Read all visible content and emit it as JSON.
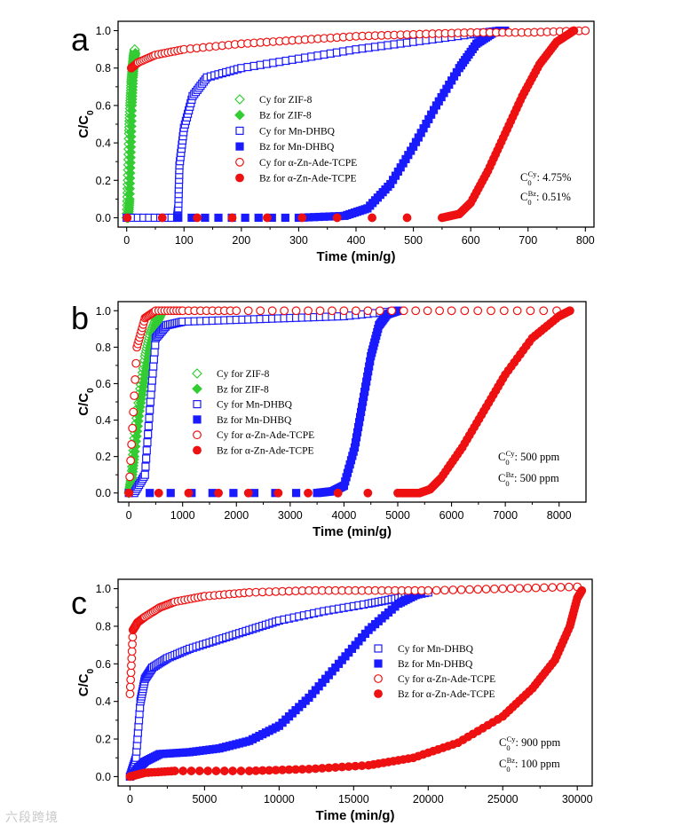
{
  "watermark": "六段跨境",
  "colors": {
    "green": "#33cc33",
    "blue": "#1a1aff",
    "red": "#ee1111",
    "axis": "#000000"
  },
  "chart_data": [
    {
      "panel": "a",
      "type": "scatter",
      "xlabel": "Time (min/g)",
      "ylabel": "C/C0",
      "xlim": [
        -15,
        815
      ],
      "ylim": [
        -0.05,
        1.05
      ],
      "xticks": [
        0,
        100,
        200,
        300,
        400,
        500,
        600,
        700,
        800
      ],
      "yticks": [
        0.0,
        0.2,
        0.4,
        0.6,
        0.8,
        1.0
      ],
      "ytick_labels": [
        "0.0",
        "0.2",
        "0.4",
        "0.6",
        "0.8",
        "1.0"
      ],
      "legend_position": "center",
      "concentrations": [
        {
          "species": "Cy",
          "value": ": 4.75%"
        },
        {
          "species": "Bz",
          "value": ": 0.51%"
        }
      ],
      "series": [
        {
          "name": "Cy for ZIF-8",
          "color": "#33cc33",
          "marker": "diamond-open",
          "points": [
            [
              0,
              0.0
            ],
            [
              2,
              0.2
            ],
            [
              4,
              0.45
            ],
            [
              6,
              0.6
            ],
            [
              8,
              0.72
            ],
            [
              10,
              0.8
            ],
            [
              12,
              0.86
            ],
            [
              14,
              0.9
            ]
          ]
        },
        {
          "name": "Bz for ZIF-8",
          "color": "#33cc33",
          "marker": "diamond-filled",
          "points": [
            [
              0,
              0.0
            ],
            [
              3,
              0.0
            ],
            [
              5,
              0.1
            ],
            [
              7,
              0.35
            ],
            [
              9,
              0.6
            ],
            [
              11,
              0.75
            ],
            [
              13,
              0.85
            ],
            [
              15,
              0.88
            ]
          ]
        },
        {
          "name": "Cy for Mn-DHBQ",
          "color": "#1a1aff",
          "marker": "square-open",
          "points": [
            [
              0,
              0.0
            ],
            [
              88,
              0.0
            ],
            [
              90,
              0.05
            ],
            [
              92,
              0.28
            ],
            [
              100,
              0.48
            ],
            [
              115,
              0.65
            ],
            [
              140,
              0.75
            ],
            [
              200,
              0.8
            ],
            [
              300,
              0.85
            ],
            [
              400,
              0.9
            ],
            [
              500,
              0.94
            ],
            [
              600,
              0.98
            ],
            [
              650,
              1.0
            ]
          ]
        },
        {
          "name": "Bz for Mn-DHBQ",
          "color": "#1a1aff",
          "marker": "square-filled",
          "points": [
            [
              90,
              0.0
            ],
            [
              300,
              0.0
            ],
            [
              380,
              0.01
            ],
            [
              420,
              0.05
            ],
            [
              460,
              0.18
            ],
            [
              500,
              0.38
            ],
            [
              540,
              0.6
            ],
            [
              580,
              0.8
            ],
            [
              610,
              0.93
            ],
            [
              640,
              0.99
            ],
            [
              660,
              1.0
            ]
          ]
        },
        {
          "name": "Cy for α-Zn-Ade-TCPE",
          "color": "#ee1111",
          "marker": "circle-open",
          "points": [
            [
              8,
              0.8
            ],
            [
              20,
              0.83
            ],
            [
              50,
              0.87
            ],
            [
              100,
              0.9
            ],
            [
              200,
              0.93
            ],
            [
              300,
              0.95
            ],
            [
              400,
              0.97
            ],
            [
              500,
              0.98
            ],
            [
              600,
              0.99
            ],
            [
              700,
              0.99
            ],
            [
              800,
              1.0
            ]
          ]
        },
        {
          "name": "Bz for α-Zn-Ade-TCPE",
          "color": "#ee1111",
          "marker": "circle-filled",
          "points": [
            [
              600,
              0.0
            ],
            [
              1,
              0.0
            ],
            [
              550,
              0.0
            ],
            [
              580,
              0.02
            ],
            [
              600,
              0.08
            ],
            [
              630,
              0.25
            ],
            [
              660,
              0.45
            ],
            [
              690,
              0.65
            ],
            [
              720,
              0.82
            ],
            [
              750,
              0.94
            ],
            [
              780,
              1.0
            ]
          ]
        }
      ]
    },
    {
      "panel": "b",
      "type": "scatter",
      "xlabel": "Time (min/g)",
      "ylabel": "C/C0",
      "xlim": [
        -200,
        8500
      ],
      "ylim": [
        -0.05,
        1.05
      ],
      "xticks": [
        0,
        1000,
        2000,
        3000,
        4000,
        5000,
        6000,
        7000,
        8000
      ],
      "yticks": [
        0.0,
        0.2,
        0.4,
        0.6,
        0.8,
        1.0
      ],
      "ytick_labels": [
        "0.0",
        "0.2",
        "0.4",
        "0.6",
        "0.8",
        "1.0"
      ],
      "legend_position": "center-left",
      "concentrations": [
        {
          "species": "Cy",
          "value": ": 500 ppm"
        },
        {
          "species": "Bz",
          "value": ": 500 ppm"
        }
      ],
      "series": [
        {
          "name": "Cy for ZIF-8",
          "color": "#33cc33",
          "marker": "diamond-open",
          "points": [
            [
              0,
              0.0
            ],
            [
              50,
              0.1
            ],
            [
              100,
              0.3
            ],
            [
              200,
              0.55
            ],
            [
              300,
              0.75
            ],
            [
              400,
              0.88
            ],
            [
              500,
              0.95
            ],
            [
              600,
              0.99
            ]
          ]
        },
        {
          "name": "Bz for ZIF-8",
          "color": "#33cc33",
          "marker": "diamond-filled",
          "points": [
            [
              0,
              0.0
            ],
            [
              50,
              0.05
            ],
            [
              100,
              0.2
            ],
            [
              200,
              0.45
            ],
            [
              300,
              0.65
            ],
            [
              400,
              0.8
            ],
            [
              500,
              0.92
            ],
            [
              600,
              0.98
            ]
          ]
        },
        {
          "name": "Cy for Mn-DHBQ",
          "color": "#1a1aff",
          "marker": "square-open",
          "points": [
            [
              100,
              0.0
            ],
            [
              300,
              0.1
            ],
            [
              400,
              0.5
            ],
            [
              500,
              0.85
            ],
            [
              700,
              0.92
            ],
            [
              1000,
              0.94
            ],
            [
              2000,
              0.95
            ],
            [
              3000,
              0.96
            ],
            [
              4000,
              0.97
            ],
            [
              5000,
              1.0
            ]
          ]
        },
        {
          "name": "Bz for Mn-DHBQ",
          "color": "#1a1aff",
          "marker": "square-filled",
          "points": [
            [
              0,
              0.0
            ],
            [
              3500,
              0.0
            ],
            [
              3800,
              0.01
            ],
            [
              4000,
              0.04
            ],
            [
              4200,
              0.25
            ],
            [
              4350,
              0.5
            ],
            [
              4500,
              0.75
            ],
            [
              4650,
              0.92
            ],
            [
              4800,
              0.98
            ],
            [
              5000,
              1.0
            ]
          ]
        },
        {
          "name": "Cy for α-Zn-Ade-TCPE",
          "color": "#ee1111",
          "marker": "circle-open",
          "points": [
            [
              0,
              0.0
            ],
            [
              150,
              0.8
            ],
            [
              300,
              0.96
            ],
            [
              500,
              1.0
            ],
            [
              1000,
              1.0
            ],
            [
              2000,
              1.0
            ],
            [
              4000,
              1.0
            ],
            [
              6000,
              1.0
            ],
            [
              8200,
              1.0
            ]
          ]
        },
        {
          "name": "Bz for α-Zn-Ade-TCPE",
          "color": "#ee1111",
          "marker": "circle-filled",
          "points": [
            [
              0,
              0.0
            ],
            [
              5000,
              0.0
            ],
            [
              5400,
              0.0
            ],
            [
              5600,
              0.02
            ],
            [
              5800,
              0.08
            ],
            [
              6200,
              0.25
            ],
            [
              6600,
              0.45
            ],
            [
              7000,
              0.65
            ],
            [
              7500,
              0.85
            ],
            [
              8000,
              0.97
            ],
            [
              8200,
              1.0
            ]
          ]
        }
      ]
    },
    {
      "panel": "c",
      "type": "scatter",
      "xlabel": "Time (min/g)",
      "ylabel": "C/C0",
      "xlim": [
        -800,
        31000
      ],
      "ylim": [
        -0.05,
        1.05
      ],
      "xticks": [
        0,
        5000,
        10000,
        15000,
        20000,
        25000,
        30000
      ],
      "yticks": [
        0.0,
        0.2,
        0.4,
        0.6,
        0.8,
        1.0
      ],
      "ytick_labels": [
        "0.0",
        "0.2",
        "0.4",
        "0.6",
        "0.8",
        "1.0"
      ],
      "legend_position": "center-right",
      "concentrations": [
        {
          "species": "Cy",
          "value": ": 900 ppm"
        },
        {
          "species": "Bz",
          "value": ": 100 ppm"
        }
      ],
      "series": [
        {
          "name": "Cy for Mn-DHBQ",
          "color": "#1a1aff",
          "marker": "square-open",
          "points": [
            [
              0,
              0.0
            ],
            [
              400,
              0.1
            ],
            [
              700,
              0.4
            ],
            [
              1000,
              0.52
            ],
            [
              1500,
              0.58
            ],
            [
              2500,
              0.63
            ],
            [
              4000,
              0.68
            ],
            [
              6000,
              0.73
            ],
            [
              8000,
              0.78
            ],
            [
              10000,
              0.83
            ],
            [
              13000,
              0.88
            ],
            [
              16000,
              0.92
            ],
            [
              18000,
              0.95
            ],
            [
              20000,
              0.98
            ]
          ]
        },
        {
          "name": "Bz for Mn-DHBQ",
          "color": "#1a1aff",
          "marker": "square-filled",
          "points": [
            [
              0,
              0.0
            ],
            [
              300,
              0.02
            ],
            [
              600,
              0.05
            ],
            [
              1000,
              0.08
            ],
            [
              2000,
              0.12
            ],
            [
              4000,
              0.13
            ],
            [
              6000,
              0.15
            ],
            [
              8000,
              0.19
            ],
            [
              10000,
              0.27
            ],
            [
              12000,
              0.42
            ],
            [
              14000,
              0.6
            ],
            [
              16000,
              0.78
            ],
            [
              18000,
              0.92
            ],
            [
              19500,
              0.98
            ]
          ]
        },
        {
          "name": "Cy for α-Zn-Ade-TCPE",
          "color": "#ee1111",
          "marker": "circle-open",
          "points": [
            [
              0,
              0.44
            ],
            [
              200,
              0.78
            ],
            [
              500,
              0.82
            ],
            [
              1000,
              0.85
            ],
            [
              2000,
              0.9
            ],
            [
              3000,
              0.93
            ],
            [
              5000,
              0.96
            ],
            [
              8000,
              0.98
            ],
            [
              12000,
              0.99
            ],
            [
              16000,
              0.99
            ],
            [
              20000,
              0.99
            ],
            [
              25000,
              1.0
            ],
            [
              30000,
              1.01
            ]
          ]
        },
        {
          "name": "Bz for α-Zn-Ade-TCPE",
          "color": "#ee1111",
          "marker": "circle-filled",
          "points": [
            [
              0,
              0.0
            ],
            [
              1000,
              0.02
            ],
            [
              3000,
              0.03
            ],
            [
              8000,
              0.03
            ],
            [
              12000,
              0.04
            ],
            [
              16000,
              0.06
            ],
            [
              19000,
              0.1
            ],
            [
              22000,
              0.18
            ],
            [
              25000,
              0.32
            ],
            [
              27000,
              0.47
            ],
            [
              28500,
              0.62
            ],
            [
              29500,
              0.8
            ],
            [
              30000,
              0.95
            ],
            [
              30300,
              0.99
            ]
          ]
        }
      ]
    }
  ]
}
